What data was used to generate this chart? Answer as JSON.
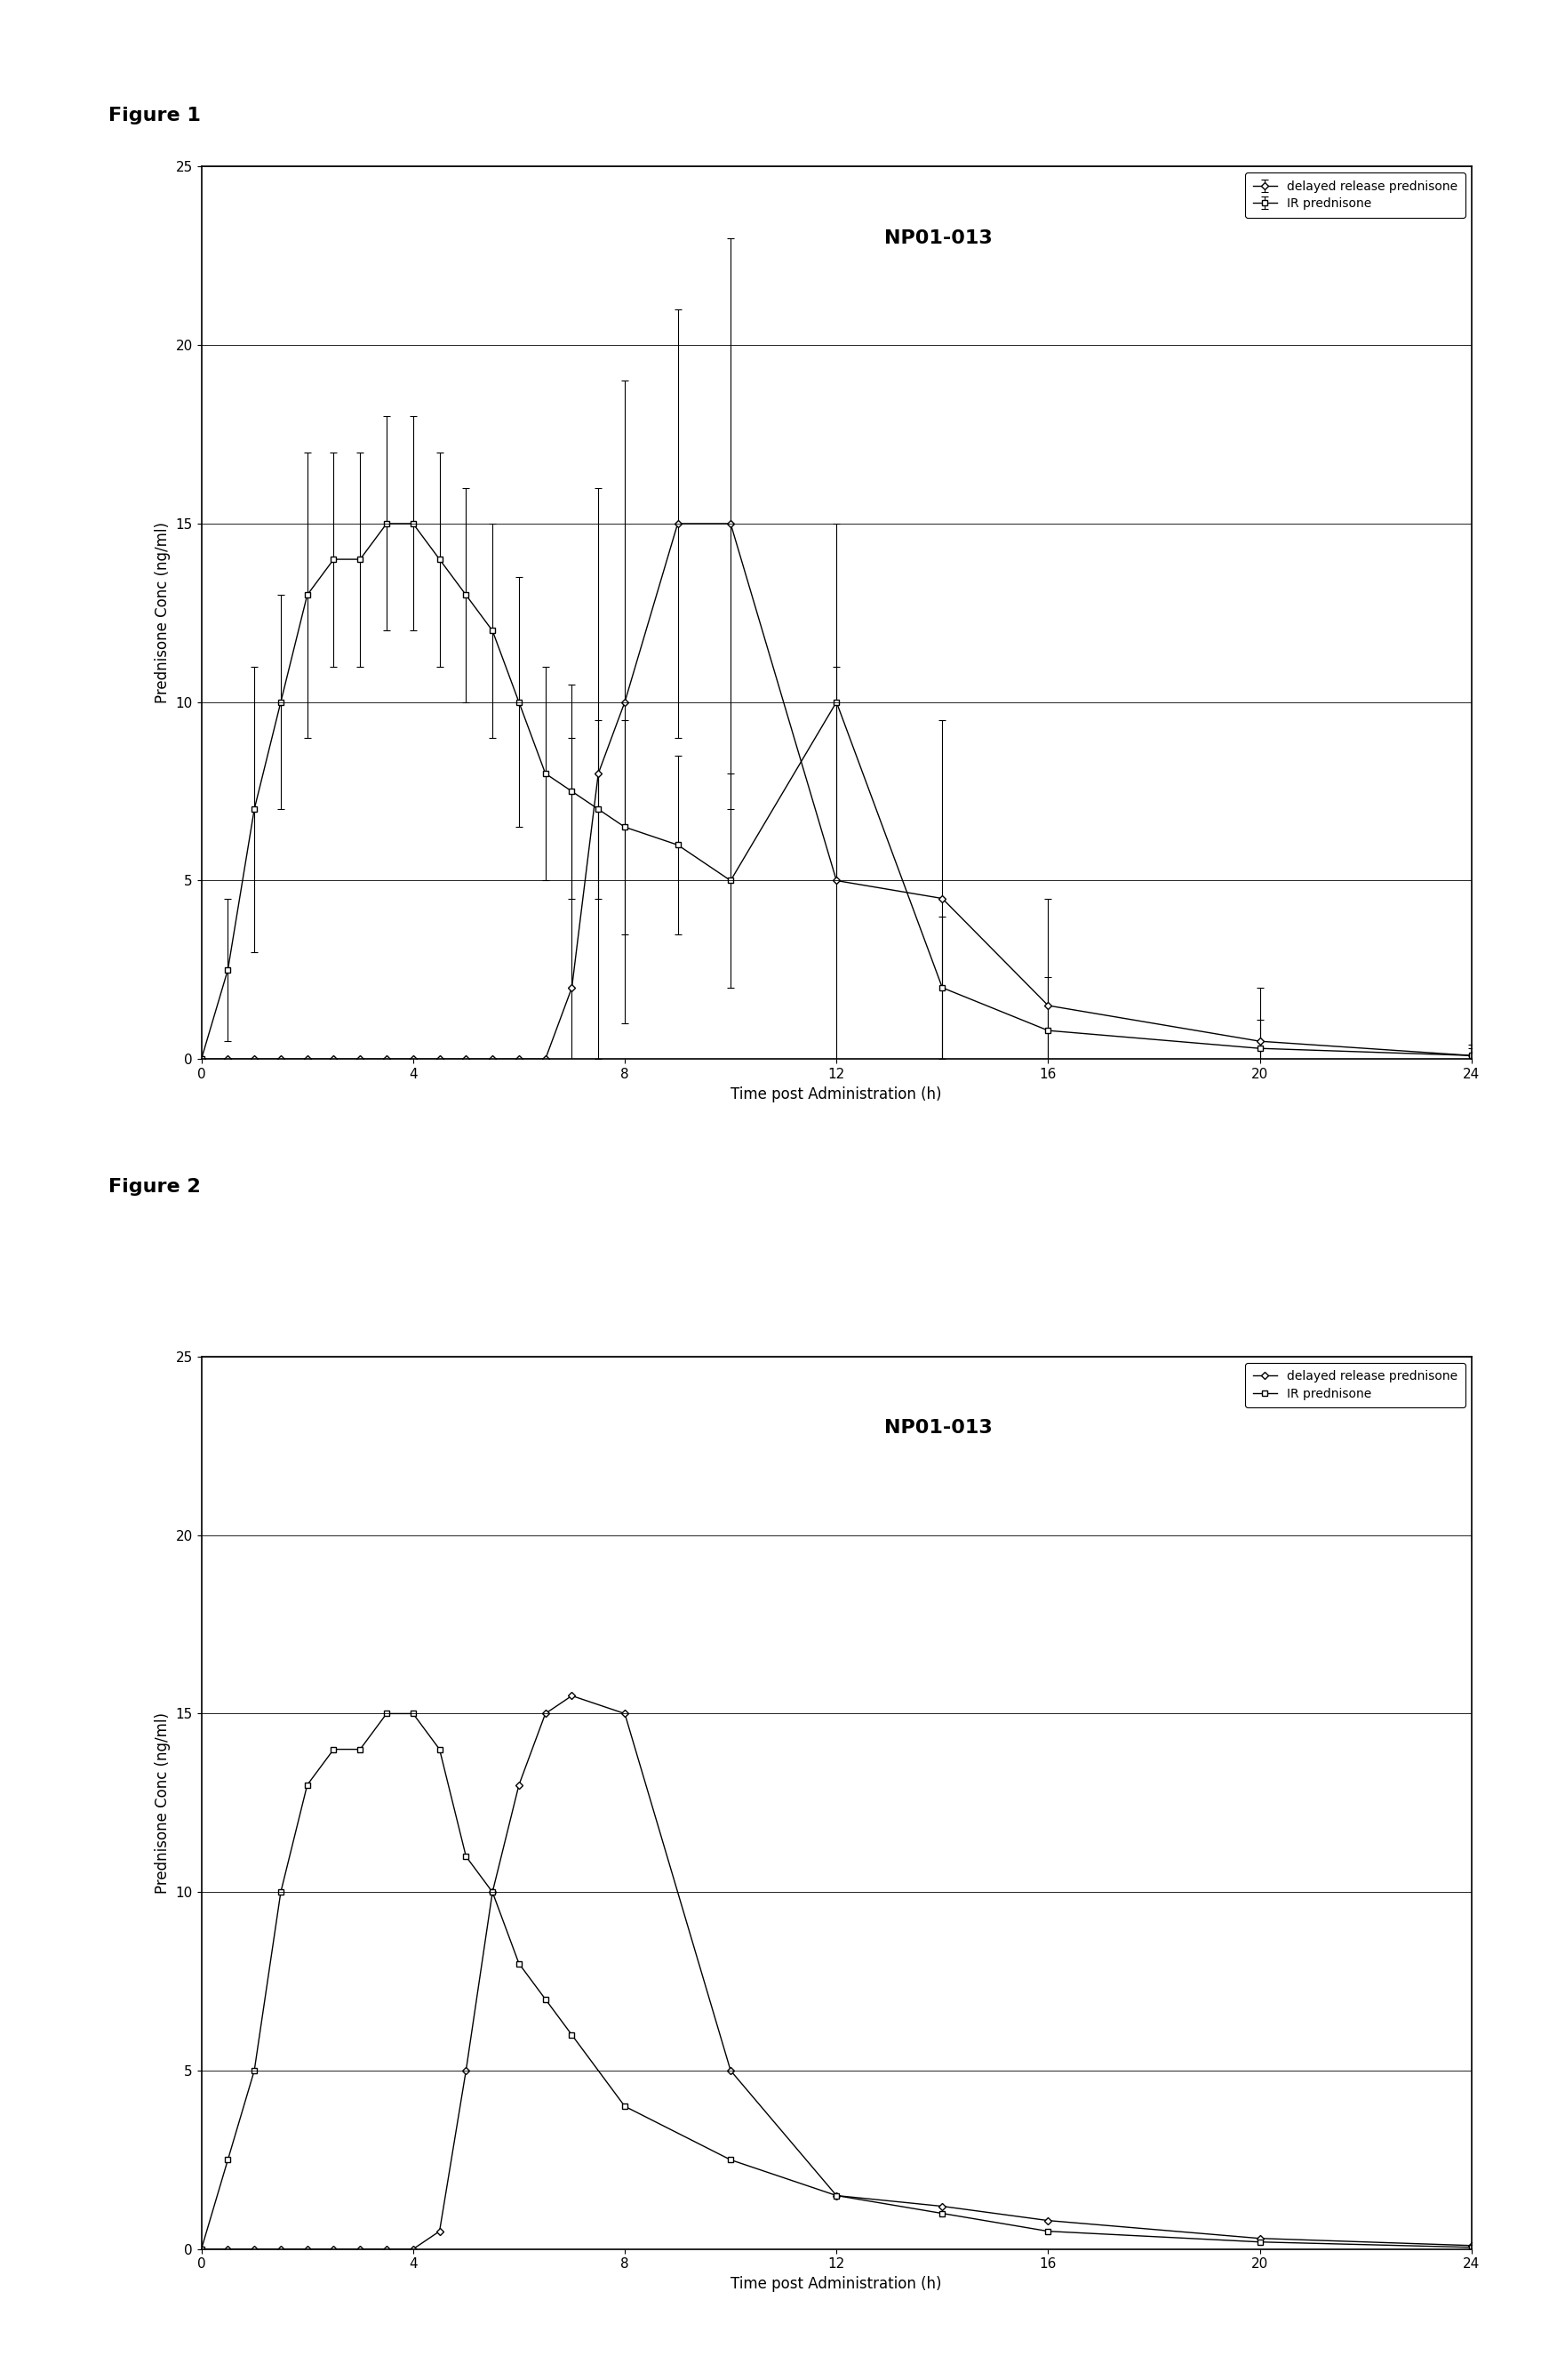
{
  "fig1_title": "Figure 1",
  "fig2_title": "Figure 2",
  "chart_title": "NP01-013",
  "ylabel": "Prednisone Conc (ng/ml)",
  "xlabel": "Time post Administration (h)",
  "xlim": [
    0,
    24
  ],
  "ylim": [
    0,
    25
  ],
  "xticks": [
    0,
    4,
    8,
    12,
    16,
    20,
    24
  ],
  "yticks": [
    0,
    5,
    10,
    15,
    20,
    25
  ],
  "dr_x": [
    0,
    0.5,
    1,
    1.5,
    2,
    2.5,
    3,
    3.5,
    4,
    4.5,
    5,
    5.5,
    6,
    6.5,
    7,
    7.5,
    8,
    9,
    10,
    12,
    14,
    16,
    20,
    24
  ],
  "dr_y": [
    0,
    0,
    0,
    0,
    0,
    0,
    0,
    0,
    0,
    0,
    0,
    0,
    0,
    0,
    2,
    8,
    10,
    15,
    15,
    5,
    4.5,
    1.5,
    0.5,
    0.1
  ],
  "dr_yerr": [
    0,
    0,
    0,
    0,
    0,
    0,
    0,
    0,
    0,
    0,
    0,
    0,
    0,
    0,
    7,
    8,
    9,
    6,
    8,
    6,
    5,
    3,
    1.5,
    0.3
  ],
  "ir_x": [
    0,
    0.5,
    1,
    1.5,
    2,
    2.5,
    3,
    3.5,
    4,
    4.5,
    5,
    5.5,
    6,
    6.5,
    7,
    7.5,
    8,
    9,
    10,
    12,
    14,
    16,
    20,
    24
  ],
  "ir_y": [
    0,
    2.5,
    7,
    10,
    13,
    14,
    14,
    15,
    15,
    14,
    13,
    12,
    10,
    8,
    7.5,
    7,
    6.5,
    6,
    5,
    10,
    2,
    0.8,
    0.3,
    0.1
  ],
  "ir_yerr": [
    0,
    2,
    4,
    3,
    4,
    3,
    3,
    3,
    3,
    3,
    3,
    3,
    3.5,
    3,
    3,
    2.5,
    3,
    2.5,
    3,
    5,
    2,
    1.5,
    0.8,
    0.2
  ],
  "dr_x2": [
    0,
    0.5,
    1,
    1.5,
    2,
    2.5,
    3,
    3.5,
    4,
    4.5,
    5,
    5.5,
    6,
    6.5,
    7,
    8,
    10,
    12,
    14,
    16,
    20,
    24
  ],
  "dr_y2": [
    0,
    0,
    0,
    0,
    0,
    0,
    0,
    0,
    0,
    0.5,
    5,
    10,
    13,
    15,
    15.5,
    15,
    5,
    1.5,
    1.2,
    0.8,
    0.3,
    0.1
  ],
  "ir_x2": [
    0,
    0.5,
    1,
    1.5,
    2,
    2.5,
    3,
    3.5,
    4,
    4.5,
    5,
    5.5,
    6,
    6.5,
    7,
    8,
    10,
    12,
    14,
    16,
    20,
    24
  ],
  "ir_y2": [
    0,
    2.5,
    5,
    10,
    13,
    14,
    14,
    15,
    15,
    14,
    11,
    10,
    8,
    7,
    6,
    4,
    2.5,
    1.5,
    1.0,
    0.5,
    0.2,
    0.05
  ],
  "legend_dr": "delayed release prednisone",
  "legend_ir": "IR prednisone",
  "line_color": "#000000",
  "bg_color": "#ffffff",
  "chart_title_fontsize": 16,
  "label_fontsize": 12,
  "tick_fontsize": 11,
  "legend_fontsize": 10,
  "fig_label_fontsize": 16
}
